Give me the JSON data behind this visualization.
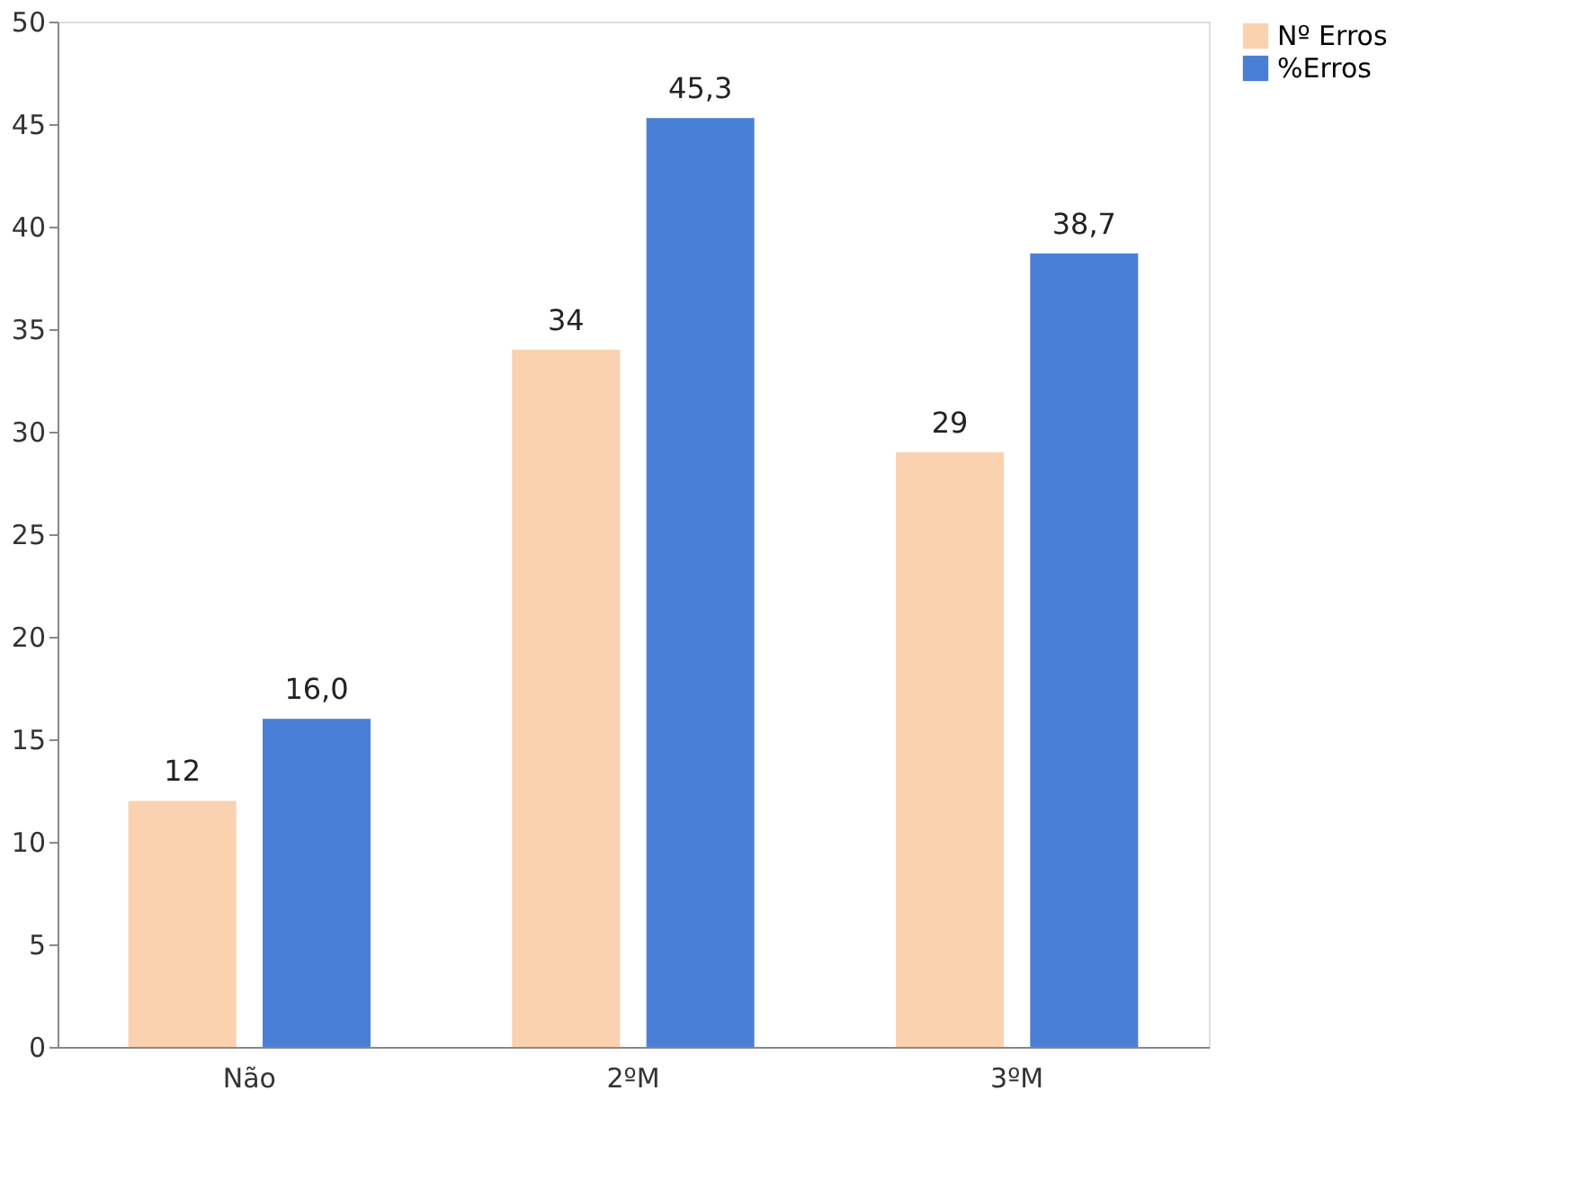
{
  "chart_data": {
    "type": "bar",
    "categories": [
      "Não",
      "2ºM",
      "3ºM"
    ],
    "series": [
      {
        "name": "Nº Erros",
        "color": "#fad2b0",
        "values": [
          12,
          34,
          29
        ],
        "value_labels": [
          "12",
          "34",
          "29"
        ]
      },
      {
        "name": "%Erros",
        "color": "#4a7fd6",
        "values": [
          16.0,
          45.3,
          38.7
        ],
        "value_labels": [
          "16,0",
          "45,3",
          "38,7"
        ]
      }
    ],
    "ylim": [
      0,
      50
    ],
    "yticks": [
      0,
      5,
      10,
      15,
      20,
      25,
      30,
      35,
      40,
      45,
      50
    ],
    "grid": false,
    "legend": "right"
  }
}
